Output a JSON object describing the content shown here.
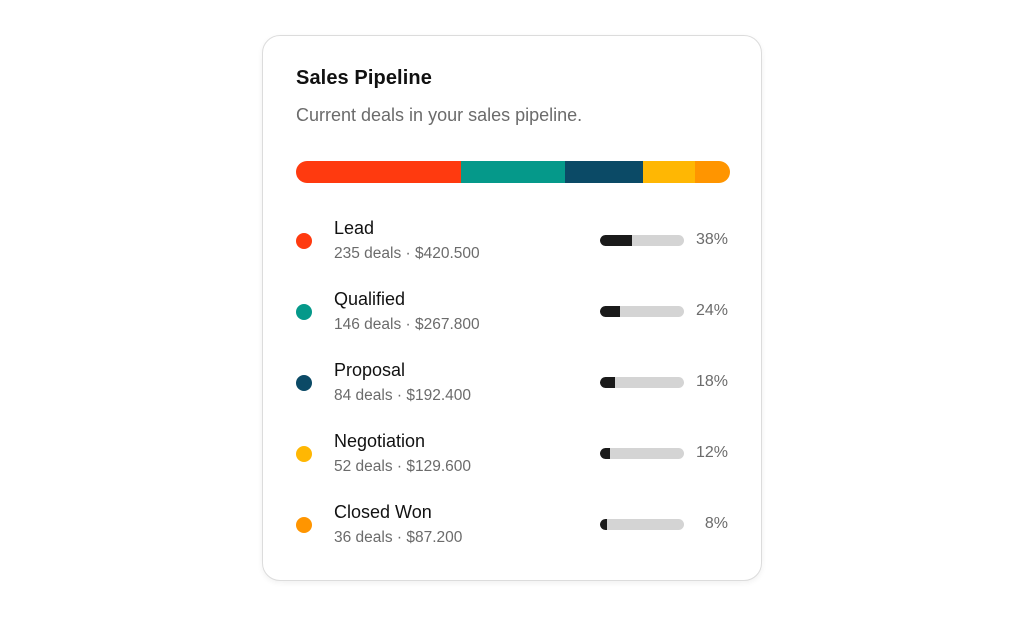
{
  "card": {
    "title": "Sales Pipeline",
    "subtitle": "Current deals in your sales pipeline."
  },
  "stages": [
    {
      "name": "Lead",
      "meta": "235 deals · $420.500",
      "percent_label": "38%",
      "share": 0.38,
      "color": "#ff3a0f"
    },
    {
      "name": "Qualified",
      "meta": "146 deals · $267.800",
      "percent_label": "24%",
      "share": 0.24,
      "color": "#05998a"
    },
    {
      "name": "Proposal",
      "meta": "84 deals · $192.400",
      "percent_label": "18%",
      "share": 0.18,
      "color": "#0b4a66"
    },
    {
      "name": "Negotiation",
      "meta": "52 deals · $129.600",
      "percent_label": "12%",
      "share": 0.12,
      "color": "#ffb703"
    },
    {
      "name": "Closed Won",
      "meta": "36 deals · $87.200",
      "percent_label": "8%",
      "share": 0.08,
      "color": "#ff9500"
    }
  ]
}
